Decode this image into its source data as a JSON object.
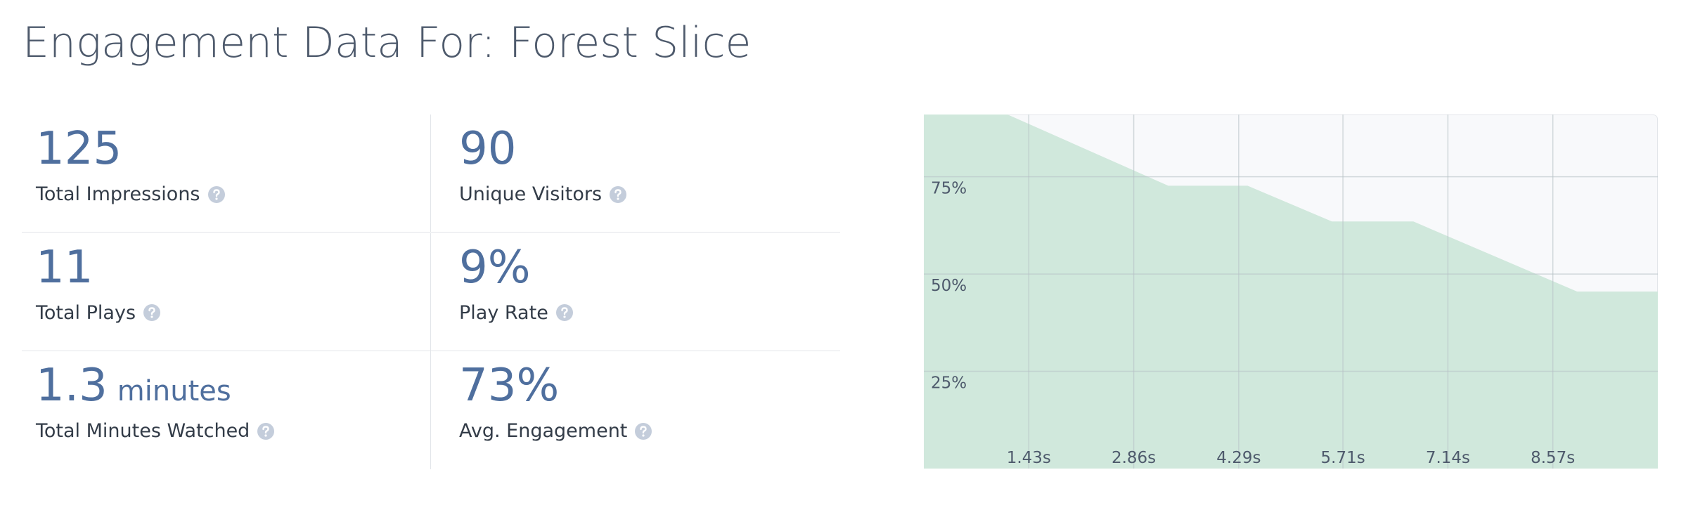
{
  "header": {
    "title": "Engagement Data For: Forest Slice"
  },
  "stats": [
    {
      "value": "125",
      "label": "Total Impressions"
    },
    {
      "value": "90",
      "label": "Unique Visitors"
    },
    {
      "value": "11",
      "label": "Total Plays"
    },
    {
      "value": "9%",
      "label": "Play Rate"
    },
    {
      "value": "1.3",
      "unit": "minutes",
      "label": "Total Minutes Watched"
    },
    {
      "value": "73%",
      "label": "Avg. Engagement"
    }
  ],
  "chart_data": {
    "type": "area",
    "color": "#d0e8dc",
    "x": [
      0,
      1.14,
      3.33,
      4.41,
      5.56,
      6.67,
      8.9,
      10
    ],
    "values": [
      91,
      91,
      72.7,
      72.7,
      63.5,
      63.5,
      45.5,
      45.5
    ],
    "xlim": [
      0,
      10
    ],
    "ylim": [
      0,
      91
    ],
    "xticks": [
      {
        "value": 1.43,
        "label": "1.43s"
      },
      {
        "value": 2.86,
        "label": "2.86s"
      },
      {
        "value": 4.29,
        "label": "4.29s"
      },
      {
        "value": 5.71,
        "label": "5.71s"
      },
      {
        "value": 7.14,
        "label": "7.14s"
      },
      {
        "value": 8.57,
        "label": "8.57s"
      }
    ],
    "yticks": [
      {
        "value": 25,
        "label": "25%"
      },
      {
        "value": 50,
        "label": "50%"
      },
      {
        "value": 75,
        "label": "75%"
      }
    ],
    "grid": true
  }
}
